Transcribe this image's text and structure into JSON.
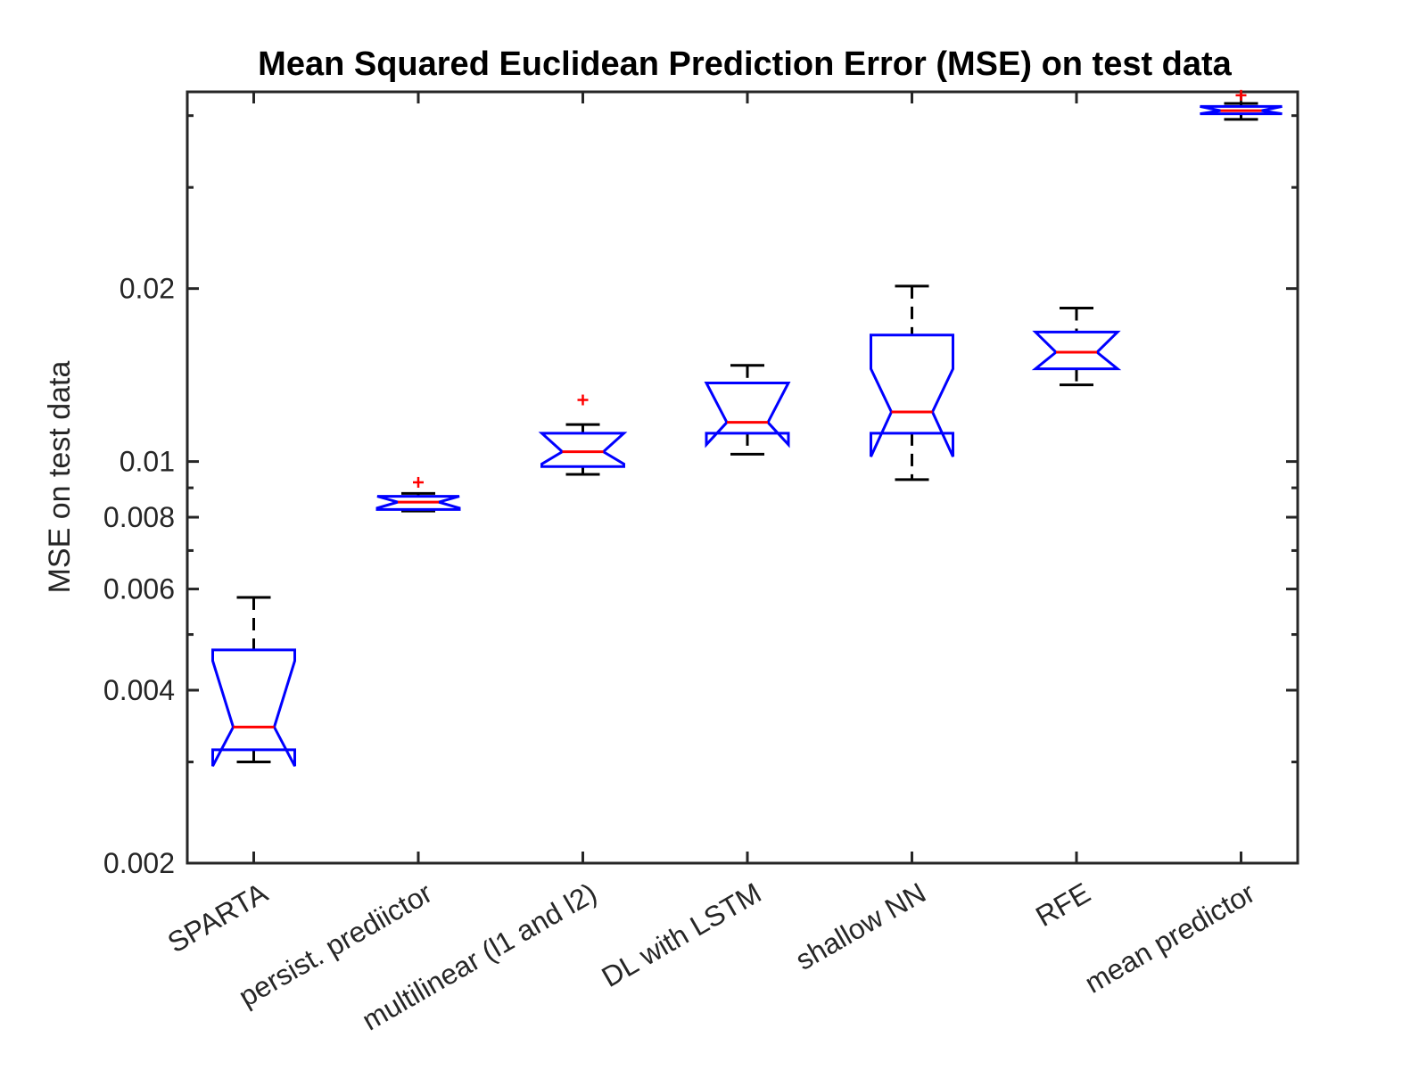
{
  "chart_data": {
    "type": "boxplot",
    "title": "Mean Squared Euclidean Prediction Error (MSE) on test data",
    "xlabel": "",
    "ylabel": "MSE on test data",
    "yscale": "log",
    "ylim": [
      0.002,
      0.044
    ],
    "yticks": [
      {
        "value": 0.002,
        "label": "0.002"
      },
      {
        "value": 0.004,
        "label": "0.004"
      },
      {
        "value": 0.006,
        "label": "0.006"
      },
      {
        "value": 0.008,
        "label": "0.008"
      },
      {
        "value": 0.01,
        "label": "0.01"
      },
      {
        "value": 0.02,
        "label": "0.02"
      }
    ],
    "notched": true,
    "grid": false,
    "colors": {
      "box": "#0000ff",
      "median": "#ff0000",
      "whisker": "#000000",
      "outlier": "#ff0000",
      "axes": "#262626"
    },
    "categories": [
      "SPARTA",
      "persist. prediictor",
      "multilinear (l1 and l2)",
      "DL with LSTM",
      "shallow NN",
      "RFE",
      "mean predictor"
    ],
    "boxes": [
      {
        "category": "SPARTA",
        "whisker_low": 0.003,
        "q1": 0.00315,
        "notch_low": 0.00295,
        "median": 0.00345,
        "notch_high": 0.0045,
        "q3": 0.0047,
        "whisker_high": 0.0058,
        "outliers": []
      },
      {
        "category": "persist. prediictor",
        "whisker_low": 0.0082,
        "q1": 0.00825,
        "notch_low": 0.0083,
        "median": 0.0085,
        "notch_high": 0.0087,
        "q3": 0.0087,
        "whisker_high": 0.0088,
        "outliers": [
          0.0092
        ]
      },
      {
        "category": "multilinear (l1 and l2)",
        "whisker_low": 0.0095,
        "q1": 0.0098,
        "notch_low": 0.0099,
        "median": 0.0104,
        "notch_high": 0.0112,
        "q3": 0.0112,
        "whisker_high": 0.0116,
        "outliers": [
          0.0128
        ]
      },
      {
        "category": "DL with LSTM",
        "whisker_low": 0.0103,
        "q1": 0.0112,
        "notch_low": 0.0107,
        "median": 0.0117,
        "notch_high": 0.0137,
        "q3": 0.0137,
        "whisker_high": 0.0147,
        "outliers": []
      },
      {
        "category": "shallow NN",
        "whisker_low": 0.0093,
        "q1": 0.0112,
        "notch_low": 0.0102,
        "median": 0.0122,
        "notch_high": 0.0145,
        "q3": 0.0166,
        "whisker_high": 0.0202,
        "outliers": []
      },
      {
        "category": "RFE",
        "whisker_low": 0.0136,
        "q1": 0.0145,
        "notch_low": 0.0145,
        "median": 0.0155,
        "notch_high": 0.0168,
        "q3": 0.0168,
        "whisker_high": 0.0185,
        "outliers": []
      },
      {
        "category": "mean predictor",
        "whisker_low": 0.0394,
        "q1": 0.0403,
        "notch_low": 0.0403,
        "median": 0.0408,
        "notch_high": 0.0415,
        "q3": 0.0415,
        "whisker_high": 0.042,
        "outliers": [
          0.0434
        ]
      }
    ]
  }
}
